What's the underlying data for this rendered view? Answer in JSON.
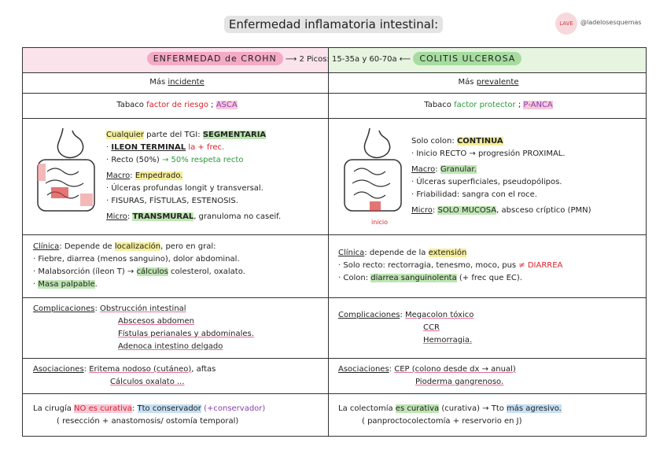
{
  "title": "Enfermedad inflamatoria intestinal:",
  "handle": "@ladelosesquemas",
  "image_label": "inicio",
  "header": [
    "ENFERMEDAD de CROHN",
    "  ⟶  ",
    "2 Picos: 15-35a y 60-70a",
    "  ⟵  ",
    "COLITIS ULCEROSA"
  ],
  "rows": [
    {
      "left": [
        [
          "Más ",
          "incidente"
        ]
      ],
      "right": [
        [
          "Más ",
          "prevalente"
        ]
      ]
    },
    {
      "left": [
        [
          "Tabaco ",
          "factor de riesgo",
          " ; ",
          "ASCA"
        ]
      ],
      "right": [
        [
          "Tabaco ",
          "factor protector",
          " ; ",
          "P-ANCA"
        ]
      ]
    },
    {
      "left": [
        [
          "Cualquier",
          " parte del TGI: ",
          "SEGMENTARIA"
        ],
        [
          "· ",
          "ILEON TERMINAL",
          " ",
          "la + frec."
        ],
        [
          "· Recto (50%) ",
          "→ 50% respeta recto"
        ],
        [
          "Macro",
          ": ",
          "Empedrado."
        ],
        [
          "· Úlceras profundas longit y transversal."
        ],
        [
          "· FISURAS, FÍSTULAS, ESTENOSIS."
        ],
        [
          "Micro",
          ": ",
          "TRANSMURAL",
          ", granuloma no caseif."
        ]
      ],
      "right": [
        [
          "Solo colon: ",
          "CONTINUA"
        ],
        [
          "· Inicio RECTO → progresión PROXIMAL."
        ],
        [
          "Macro",
          ": ",
          "Granular."
        ],
        [
          "· Úlceras superficiales, pseudopólipos."
        ],
        [
          "· Friabilidad: sangra con el roce."
        ],
        [
          "Micro",
          ": ",
          "SOLO MUCOSA",
          ", absceso críptico (PMN)"
        ]
      ]
    },
    {
      "left": [
        [
          "Clínica",
          ": Depende de ",
          "localización",
          ", pero en gral:"
        ],
        [
          "· Fiebre, diarrea (menos sanguino), dolor abdominal."
        ],
        [
          "· Malabsorción (íleon T) → ",
          "cálculos",
          " colesterol, oxalato."
        ],
        [
          "· ",
          "Masa palpable",
          "."
        ]
      ],
      "right": [
        [
          "Clínica",
          ": depende de la ",
          "extensión"
        ],
        [
          "· Solo recto: rectorragia, tenesmo, moco, pus ",
          "≠ DIARREA"
        ],
        [
          "· Colon: ",
          "diarrea sanguinolenta",
          " (+ frec que EC)."
        ]
      ]
    },
    {
      "left": [
        [
          "Complicaciones",
          ":  ",
          "Obstrucción intestinal"
        ],
        [
          "Abscesos abdomen"
        ],
        [
          "Fístulas perianales y abdominales."
        ],
        [
          "Adenoca intestino delgado"
        ]
      ],
      "right": [
        [
          "Complicaciones",
          ":  ",
          "Megacolon tóxico"
        ],
        [
          "CCR"
        ],
        [
          "Hemorragia."
        ]
      ]
    },
    {
      "left": [
        [
          "Asociaciones",
          ":  ",
          "Eritema nodoso (cutáneo)",
          ", aftas"
        ],
        [
          "Cálculos oxalato ..."
        ]
      ],
      "right": [
        [
          "Asociaciones",
          ":  ",
          "CEP (colono desde dx → anual)"
        ],
        [
          "Pioderma gangrenoso."
        ]
      ]
    },
    {
      "left": [
        [
          "La cirugía ",
          "NO es curativa",
          ": ",
          "Tto conservador",
          " (+conservador)"
        ],
        [
          "( resección + anastomosis/ ostomía temporal)"
        ]
      ],
      "right": [
        [
          "La colectomía ",
          "es curativa",
          " (curativa) → Tto ",
          "más agresivo."
        ],
        [
          "( panproctocolectomía + reservorio en J)"
        ]
      ]
    }
  ]
}
